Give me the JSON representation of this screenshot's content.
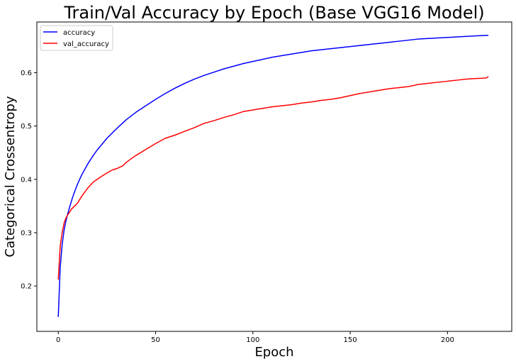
{
  "chart_data": {
    "type": "line",
    "title": "Train/Val Accuracy by Epoch (Base VGG16 Model)",
    "xlabel": "Epoch",
    "ylabel": "Categorical Crossentropy",
    "xlim": [
      -11,
      233
    ],
    "ylim": [
      0.115,
      0.695
    ],
    "xticks": [
      0,
      50,
      100,
      150,
      200
    ],
    "yticks": [
      0.2,
      0.3,
      0.4,
      0.5,
      0.6
    ],
    "grid": false,
    "legend_position": "top-left",
    "series": [
      {
        "name": "accuracy",
        "color": "#0000ff",
        "x": [
          0,
          1,
          2,
          3,
          4,
          5,
          6,
          7,
          8,
          10,
          12,
          15,
          18,
          20,
          25,
          30,
          35,
          40,
          45,
          50,
          55,
          60,
          65,
          70,
          75,
          80,
          85,
          90,
          95,
          100,
          105,
          110,
          115,
          120,
          125,
          130,
          135,
          140,
          145,
          150,
          155,
          160,
          165,
          170,
          175,
          180,
          185,
          190,
          195,
          200,
          205,
          210,
          215,
          221
        ],
        "y": [
          0.142,
          0.235,
          0.278,
          0.305,
          0.323,
          0.337,
          0.35,
          0.362,
          0.373,
          0.392,
          0.408,
          0.428,
          0.445,
          0.455,
          0.477,
          0.495,
          0.512,
          0.526,
          0.538,
          0.55,
          0.561,
          0.571,
          0.58,
          0.588,
          0.595,
          0.601,
          0.607,
          0.612,
          0.617,
          0.621,
          0.625,
          0.629,
          0.632,
          0.635,
          0.638,
          0.641,
          0.643,
          0.645,
          0.647,
          0.649,
          0.651,
          0.653,
          0.655,
          0.657,
          0.659,
          0.661,
          0.663,
          0.664,
          0.665,
          0.666,
          0.667,
          0.668,
          0.669,
          0.67
        ]
      },
      {
        "name": "val_accuracy",
        "color": "#ff0000",
        "x": [
          0,
          1,
          2,
          3,
          4,
          5,
          7,
          9,
          10,
          12,
          15,
          18,
          20,
          22,
          25,
          28,
          30,
          33,
          35,
          38,
          40,
          45,
          50,
          55,
          60,
          65,
          70,
          75,
          80,
          85,
          90,
          95,
          100,
          105,
          110,
          115,
          120,
          125,
          130,
          135,
          140,
          145,
          150,
          155,
          160,
          165,
          170,
          175,
          180,
          185,
          190,
          195,
          200,
          205,
          210,
          215,
          220,
          221
        ],
        "y": [
          0.212,
          0.275,
          0.3,
          0.318,
          0.328,
          0.334,
          0.345,
          0.352,
          0.356,
          0.368,
          0.383,
          0.395,
          0.4,
          0.405,
          0.412,
          0.418,
          0.42,
          0.425,
          0.432,
          0.44,
          0.445,
          0.456,
          0.467,
          0.477,
          0.483,
          0.49,
          0.497,
          0.505,
          0.51,
          0.516,
          0.521,
          0.527,
          0.53,
          0.533,
          0.536,
          0.538,
          0.54,
          0.543,
          0.545,
          0.548,
          0.55,
          0.553,
          0.557,
          0.561,
          0.564,
          0.567,
          0.57,
          0.572,
          0.574,
          0.578,
          0.58,
          0.582,
          0.584,
          0.586,
          0.588,
          0.589,
          0.59,
          0.593
        ]
      }
    ]
  }
}
